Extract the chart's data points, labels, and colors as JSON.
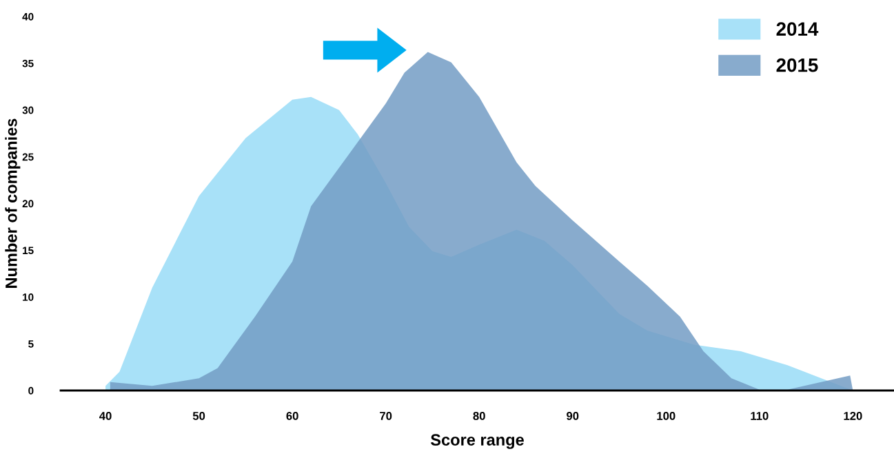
{
  "chart_data": {
    "type": "area",
    "xlabel": "Score range",
    "ylabel": "Number of companies",
    "xlim": [
      35.2,
      124.4
    ],
    "ylim": [
      0,
      40
    ],
    "xticks": [
      40,
      50,
      60,
      70,
      80,
      90,
      100,
      110,
      120
    ],
    "yticks": [
      0,
      5,
      10,
      15,
      20,
      25,
      30,
      35,
      40
    ],
    "grid": false,
    "legend": "top right",
    "series": [
      {
        "name": "2014",
        "color": "#a8e1f8",
        "x": [
          40,
          41.5,
          45,
          50,
          55,
          60,
          62,
          65,
          67,
          70,
          72.5,
          75,
          77,
          80,
          84,
          87,
          90,
          95,
          98,
          103,
          108,
          113,
          120
        ],
        "values": [
          0.5,
          2,
          11,
          20.8,
          27,
          31.1,
          31.4,
          30,
          27.4,
          22.2,
          17.5,
          14.9,
          14.3,
          15.6,
          17.2,
          16,
          13.4,
          8.2,
          6.4,
          4.9,
          4.2,
          2.7,
          0
        ]
      },
      {
        "name": "2015",
        "color": "#739cc4",
        "x": [
          40.5,
          45,
          50,
          52,
          56,
          60,
          62,
          66,
          70,
          72,
          74.5,
          77,
          80,
          84,
          86,
          90,
          95,
          98,
          101.5,
          104,
          107,
          110,
          113,
          119.7,
          120
        ],
        "values": [
          0.9,
          0.5,
          1.3,
          2.4,
          7.9,
          13.8,
          19.7,
          25.2,
          30.7,
          34,
          36.2,
          35.1,
          31.4,
          24.4,
          21.9,
          18.2,
          13.8,
          11.2,
          7.9,
          4.2,
          1.3,
          0.1,
          0.1,
          1.6,
          0
        ]
      }
    ]
  }
}
